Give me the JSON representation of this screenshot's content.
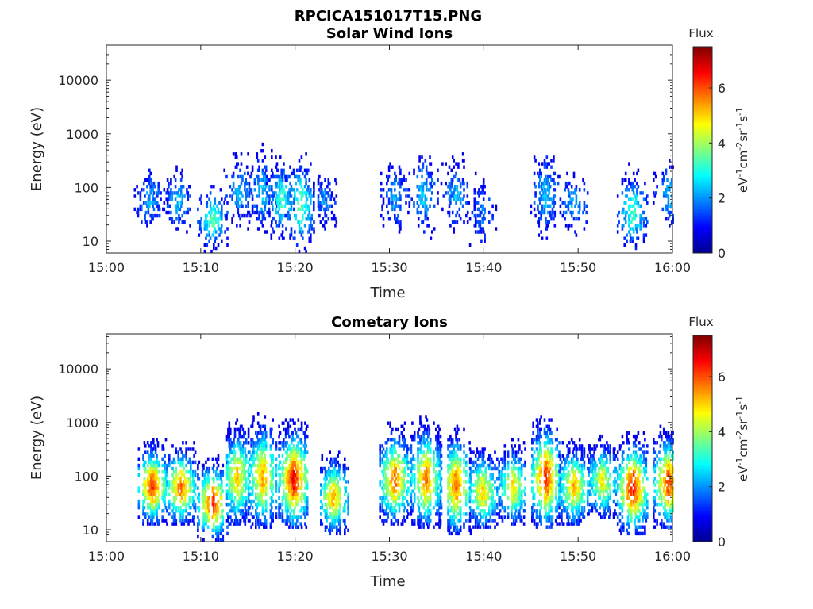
{
  "figure": {
    "filename_title": "RPCICA151017T15.PNG"
  },
  "colormap": [
    "#00008f",
    "#0000ff",
    "#0080ff",
    "#00ffff",
    "#80ff80",
    "#ffff00",
    "#ff8000",
    "#ff0000",
    "#800000"
  ],
  "chart_data": [
    {
      "type": "heatmap",
      "title": "Solar Wind Ions",
      "xlabel": "Time",
      "ylabel": "Energy (eV)",
      "x_ticks": [
        "15:00",
        "15:10",
        "15:20",
        "15:30",
        "15:40",
        "15:50",
        "16:00"
      ],
      "x_range_minutes": [
        0,
        60
      ],
      "y_scale": "log",
      "y_ticks": [
        10,
        100,
        1000,
        10000
      ],
      "y_range": [
        6,
        45000
      ],
      "colorbar": {
        "label": "Flux",
        "units": "eV-1cm-2sr-1s-1",
        "ticks": [
          0,
          2,
          4,
          6
        ],
        "range": [
          0,
          7.5
        ]
      },
      "bursts": [
        {
          "t": 4.5,
          "e_low": 12,
          "e_high": 400,
          "peak": 2.2
        },
        {
          "t": 7.5,
          "e_low": 12,
          "e_high": 350,
          "peak": 2.4
        },
        {
          "t": 11.2,
          "e_low": 6,
          "e_high": 150,
          "peak": 3.5
        },
        {
          "t": 14.0,
          "e_low": 15,
          "e_high": 700,
          "peak": 2.3
        },
        {
          "t": 16.5,
          "e_low": 12,
          "e_high": 900,
          "peak": 2.5
        },
        {
          "t": 18.5,
          "e_low": 10,
          "e_high": 500,
          "peak": 3.2
        },
        {
          "t": 20.5,
          "e_low": 6,
          "e_high": 600,
          "peak": 3.5
        },
        {
          "t": 23.0,
          "e_low": 15,
          "e_high": 300,
          "peak": 2.0
        },
        {
          "t": 30.5,
          "e_low": 12,
          "e_high": 600,
          "peak": 2.2
        },
        {
          "t": 33.5,
          "e_low": 10,
          "e_high": 900,
          "peak": 2.5
        },
        {
          "t": 37.0,
          "e_low": 12,
          "e_high": 600,
          "peak": 2.3
        },
        {
          "t": 39.8,
          "e_low": 6,
          "e_high": 300,
          "peak": 1.8
        },
        {
          "t": 46.5,
          "e_low": 10,
          "e_high": 900,
          "peak": 2.5
        },
        {
          "t": 49.5,
          "e_low": 12,
          "e_high": 300,
          "peak": 2.4
        },
        {
          "t": 55.7,
          "e_low": 6,
          "e_high": 300,
          "peak": 3.4
        },
        {
          "t": 59.5,
          "e_low": 15,
          "e_high": 500,
          "peak": 2.4
        }
      ]
    },
    {
      "type": "heatmap",
      "title": "Cometary Ions",
      "xlabel": "Time",
      "ylabel": "Energy (eV)",
      "x_ticks": [
        "15:00",
        "15:10",
        "15:20",
        "15:30",
        "15:40",
        "15:50",
        "16:00"
      ],
      "x_range_minutes": [
        0,
        60
      ],
      "y_scale": "log",
      "y_ticks": [
        10,
        100,
        1000,
        10000
      ],
      "y_range": [
        6,
        45000
      ],
      "colorbar": {
        "label": "Flux",
        "units": "eV-1cm-2sr-1s-1",
        "ticks": [
          0,
          2,
          4,
          6
        ],
        "range": [
          0,
          7.5
        ]
      },
      "bursts": [
        {
          "t": 4.8,
          "e_low": 12,
          "e_high": 500,
          "peak": 6.3
        },
        {
          "t": 7.8,
          "e_low": 12,
          "e_high": 450,
          "peak": 6.0
        },
        {
          "t": 11.2,
          "e_low": 6,
          "e_high": 250,
          "peak": 6.5
        },
        {
          "t": 13.8,
          "e_low": 12,
          "e_high": 1200,
          "peak": 5.2
        },
        {
          "t": 16.5,
          "e_low": 10,
          "e_high": 1500,
          "peak": 5.5
        },
        {
          "t": 19.8,
          "e_low": 10,
          "e_high": 1200,
          "peak": 6.8
        },
        {
          "t": 24.0,
          "e_low": 8,
          "e_high": 300,
          "peak": 5.5
        },
        {
          "t": 30.5,
          "e_low": 12,
          "e_high": 1000,
          "peak": 6.0
        },
        {
          "t": 33.8,
          "e_low": 10,
          "e_high": 1300,
          "peak": 5.8
        },
        {
          "t": 37.0,
          "e_low": 8,
          "e_high": 900,
          "peak": 6.0
        },
        {
          "t": 39.8,
          "e_low": 10,
          "e_high": 400,
          "peak": 5.2
        },
        {
          "t": 43.0,
          "e_low": 12,
          "e_high": 500,
          "peak": 5.0
        },
        {
          "t": 46.5,
          "e_low": 10,
          "e_high": 1400,
          "peak": 6.5
        },
        {
          "t": 49.5,
          "e_low": 12,
          "e_high": 500,
          "peak": 5.4
        },
        {
          "t": 52.5,
          "e_low": 15,
          "e_high": 600,
          "peak": 4.8
        },
        {
          "t": 55.7,
          "e_low": 8,
          "e_high": 700,
          "peak": 6.8
        },
        {
          "t": 59.5,
          "e_low": 10,
          "e_high": 900,
          "peak": 6.3
        }
      ]
    }
  ]
}
